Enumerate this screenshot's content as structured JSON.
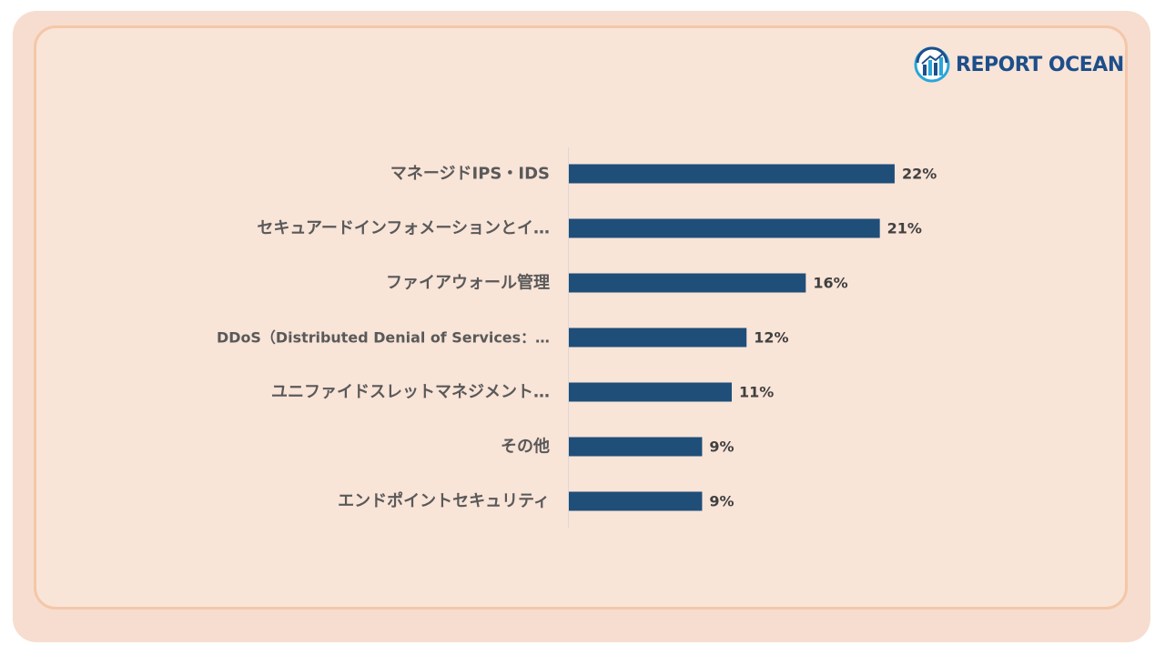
{
  "logo": {
    "text": "REPORT OCEAN",
    "icon": "report-ocean-globe-icon",
    "color": "#1d4f8a"
  },
  "colors": {
    "background": "#f9e4d8",
    "border": "#f3c7a8",
    "bar": "#1f4e79",
    "axis": "#d9d9d9"
  },
  "chart_data": {
    "type": "bar",
    "orientation": "horizontal",
    "categories": [
      "マネージドIPS・IDS",
      "セキュアードインフォメーションとイ…",
      "ファイアウォール管理",
      "DDoS（Distributed Denial of Services：…",
      "ユニファイドスレットマネジメント…",
      "その他",
      "エンドポイントセキュリティ"
    ],
    "values": [
      22,
      21,
      16,
      12,
      11,
      9,
      9
    ],
    "value_labels": [
      "22%",
      "21%",
      "16%",
      "12%",
      "11%",
      "9%",
      "9%"
    ],
    "unit": "%",
    "xlim": [
      0,
      25
    ],
    "grid": false,
    "legend": "none",
    "title": "",
    "xlabel": "",
    "ylabel": ""
  }
}
